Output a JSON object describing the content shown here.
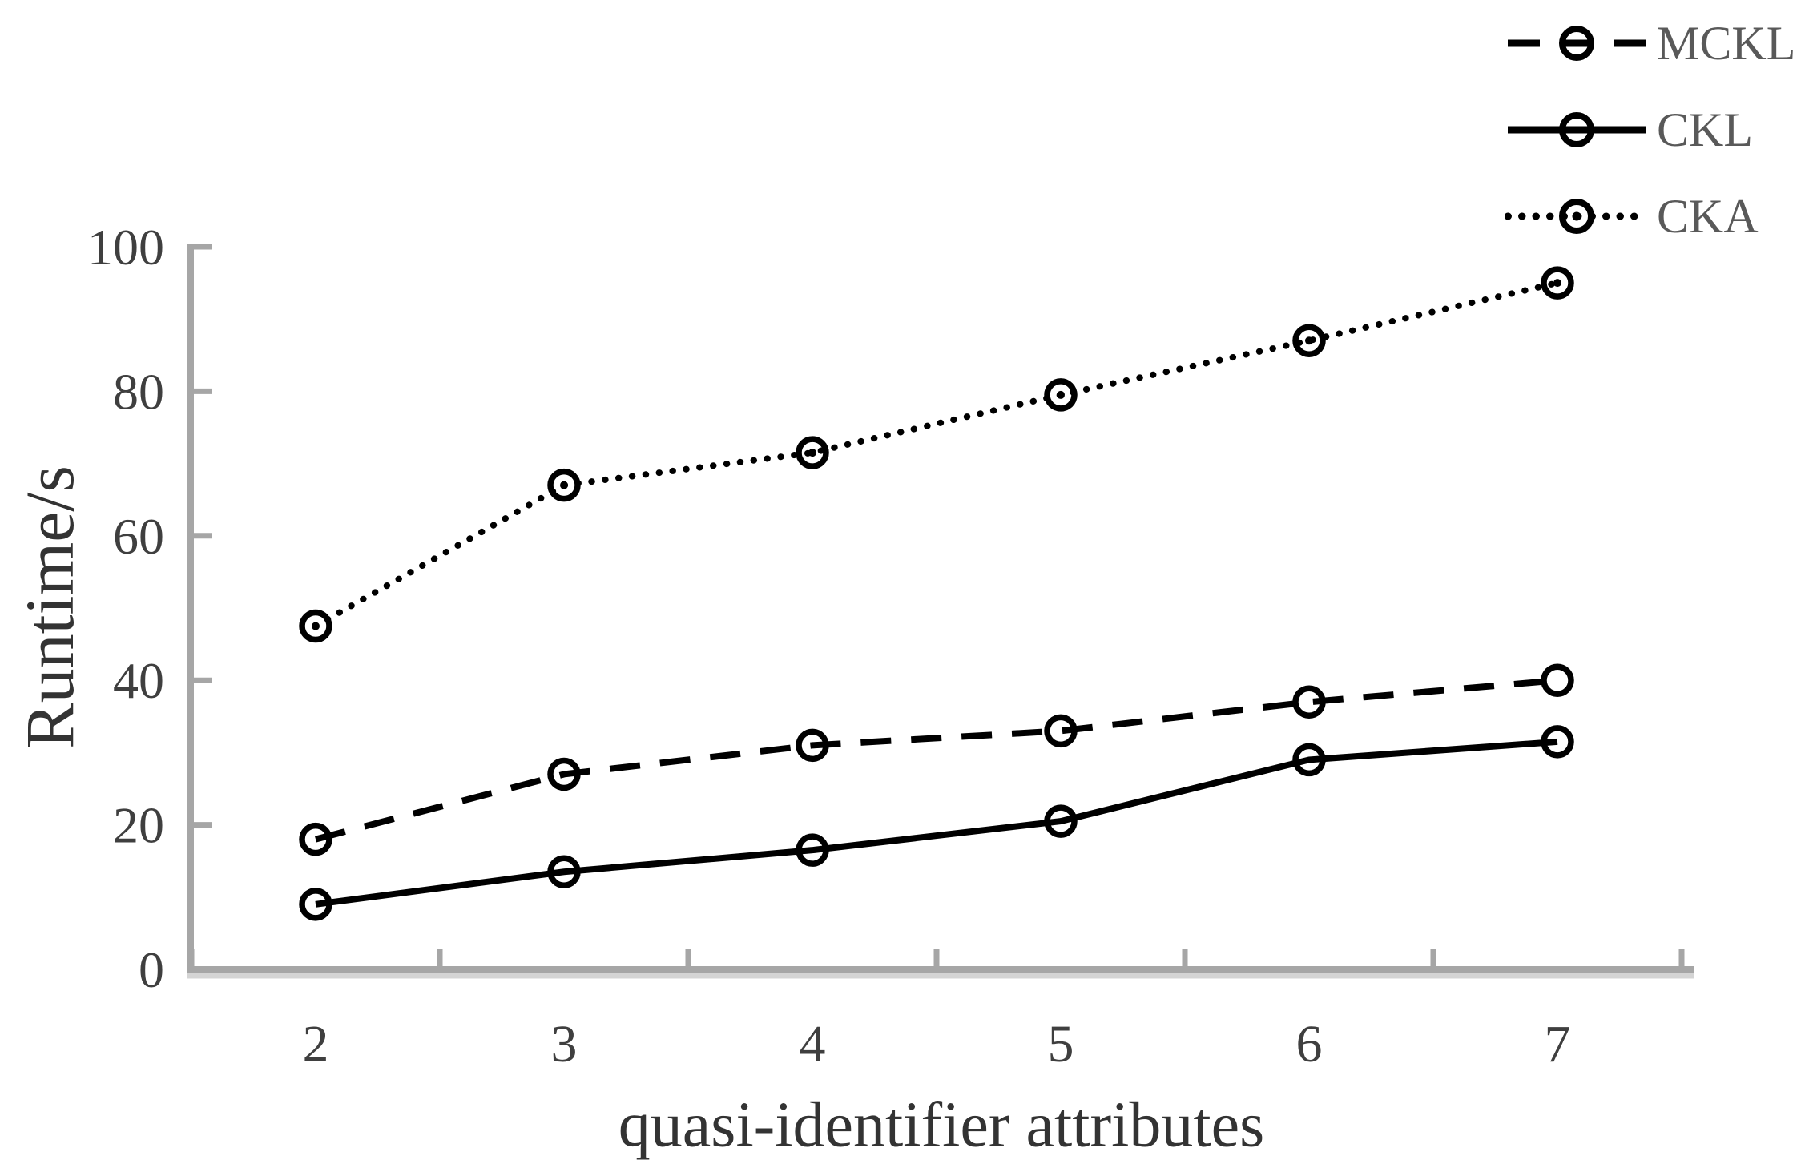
{
  "chart_data": {
    "type": "line",
    "title": "",
    "xlabel": "quasi-identifier attributes",
    "ylabel": "Runtime/s",
    "categories": [
      "2",
      "3",
      "4",
      "5",
      "6",
      "7"
    ],
    "x": [
      2,
      3,
      4,
      5,
      6,
      7
    ],
    "yticks": [
      0,
      20,
      40,
      60,
      80,
      100
    ],
    "ylim": [
      0,
      100
    ],
    "grid": false,
    "legend_position": "top-right",
    "series": [
      {
        "name": "MCKL",
        "style": "dashed",
        "marker": "circle",
        "values": [
          18,
          27,
          31,
          33,
          37,
          40
        ]
      },
      {
        "name": "CKL",
        "style": "solid",
        "marker": "circle",
        "values": [
          9,
          13.5,
          16.5,
          20.5,
          29,
          31.5
        ]
      },
      {
        "name": "CKA",
        "style": "dotted",
        "marker": "circle-dot",
        "values": [
          47.5,
          67,
          71.5,
          79.5,
          87,
          95
        ]
      }
    ],
    "colors": {
      "background": "#ffffff",
      "line": "#000000",
      "axis": "#a6a6a6",
      "axis_shadow": "#d4d4d4",
      "tick_label": "#3f3f3f",
      "axis_title": "#333333",
      "legend_text": "#595959"
    }
  }
}
